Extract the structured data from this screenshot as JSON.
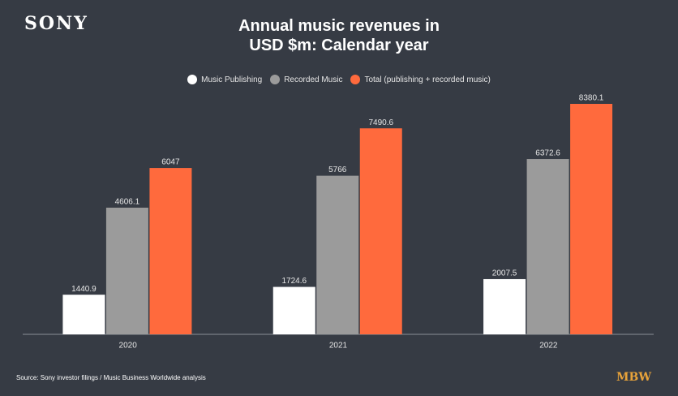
{
  "brand": "SONY",
  "publisher_logo": "MBW",
  "source": "Source: Sony investor filings / Music Business Worldwide analysis",
  "chart_data": {
    "type": "bar",
    "title": "Annual music revenues in USD $m: Calendar year",
    "categories": [
      "2020",
      "2021",
      "2022"
    ],
    "series": [
      {
        "name": "Music Publishing",
        "color": "#ffffff",
        "values": [
          1440.9,
          1724.6,
          2007.5
        ]
      },
      {
        "name": "Recorded Music",
        "color": "#9b9b9b",
        "values": [
          4606.1,
          5766,
          6372.6
        ]
      },
      {
        "name": "Total (publishing + recorded music)",
        "color": "#ff6a3d",
        "values": [
          6047,
          7490.6,
          8380.1
        ]
      }
    ],
    "ylim": [
      0,
      9000
    ],
    "legend": "top",
    "background": "#363b44"
  }
}
